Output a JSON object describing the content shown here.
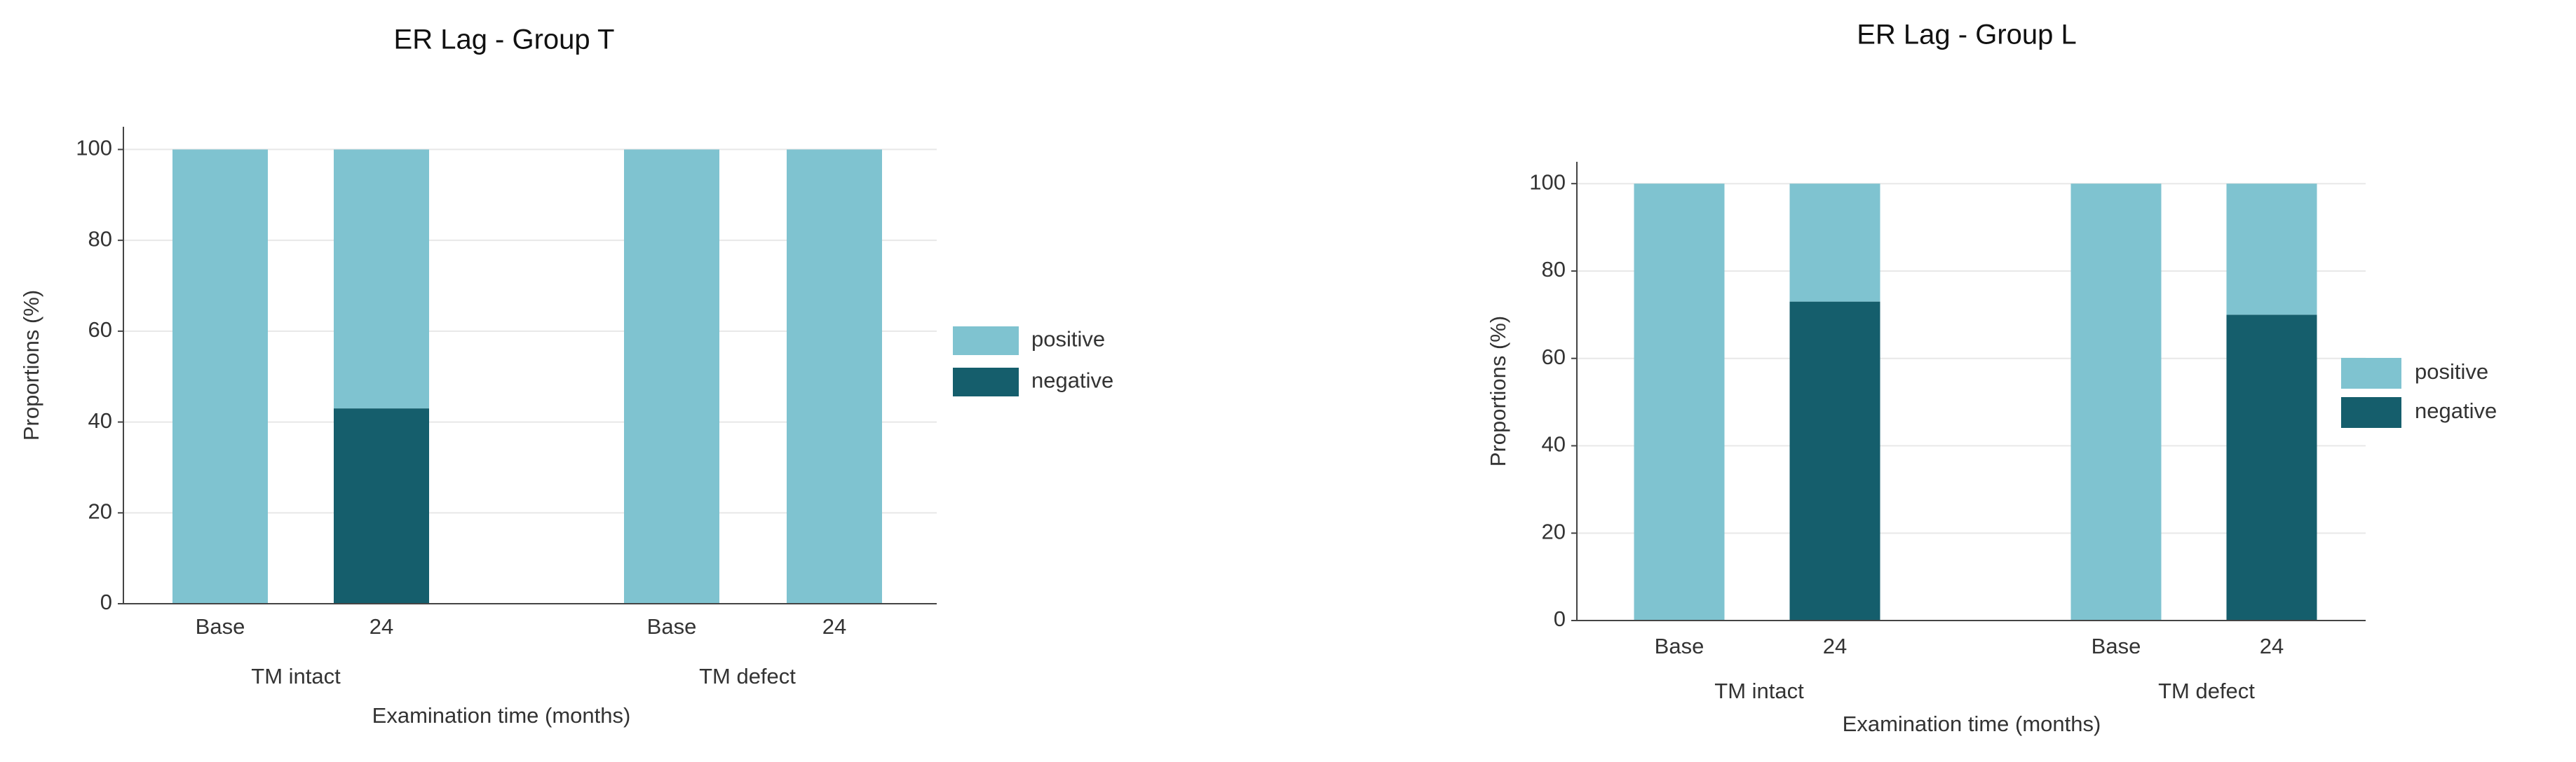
{
  "chart_data": [
    {
      "type": "stacked_bar",
      "title": "ER Lag - Group T",
      "categories": [
        "Base",
        "24",
        "Base",
        "24"
      ],
      "groups": [
        "TM intact",
        "TM defect"
      ],
      "xlabel": "Examination time (months)",
      "ylabel": "Proportions (%)",
      "series": [
        {
          "name": "positive",
          "color": "#7fc3d0",
          "values": [
            100,
            57,
            100,
            100
          ]
        },
        {
          "name": "negative",
          "color": "#155e6c",
          "values": [
            0,
            43,
            0,
            0
          ]
        }
      ],
      "ylim": [
        0,
        105
      ],
      "yticks": [
        0,
        20,
        40,
        60,
        80,
        100
      ],
      "grid": true,
      "legend": "right"
    },
    {
      "type": "stacked_bar",
      "title": "ER Lag - Group L",
      "categories": [
        "Base",
        "24",
        "Base",
        "24"
      ],
      "groups": [
        "TM intact",
        "TM defect"
      ],
      "xlabel": "Examination time (months)",
      "ylabel": "Proportions (%)",
      "series": [
        {
          "name": "positive",
          "color": "#7fc3d0",
          "values": [
            100,
            27,
            100,
            30
          ]
        },
        {
          "name": "negative",
          "color": "#155e6c",
          "values": [
            0,
            73,
            0,
            70
          ]
        }
      ],
      "ylim": [
        0,
        105
      ],
      "yticks": [
        0,
        20,
        40,
        60,
        80,
        100
      ],
      "grid": true,
      "legend": "right"
    }
  ]
}
